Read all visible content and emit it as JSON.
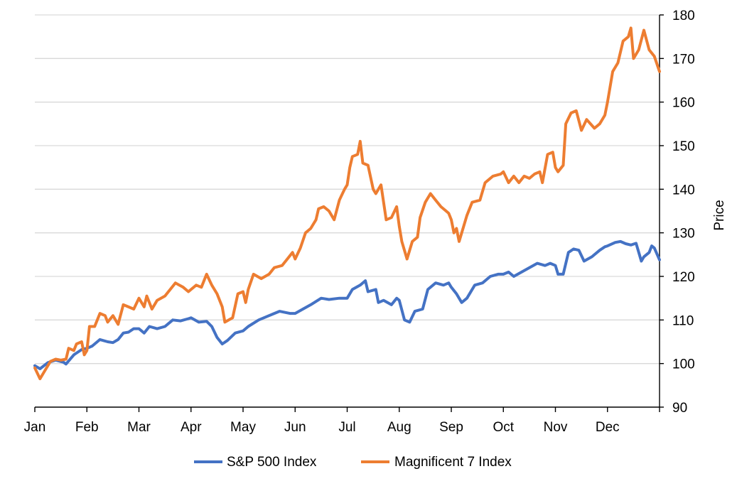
{
  "chart_data": {
    "type": "line",
    "title": "",
    "xlabel": "",
    "ylabel": "Price",
    "y_axis_side": "right",
    "ylim": [
      90,
      180
    ],
    "y_ticks": [
      "90",
      "100",
      "110",
      "120",
      "130",
      "140",
      "150",
      "160",
      "170",
      "180"
    ],
    "months": [
      "Jan",
      "Feb",
      "Mar",
      "Apr",
      "May",
      "Jun",
      "Jul",
      "Aug",
      "Sep",
      "Oct",
      "Nov",
      "Dec"
    ],
    "grid": "horizontal",
    "legend_position": "bottom",
    "series": [
      {
        "name": "S&P 500 Index",
        "color": "#4472C4",
        "points": [
          [
            0,
            99.5
          ],
          [
            0.1,
            98.8
          ],
          [
            0.25,
            100.2
          ],
          [
            0.4,
            100.8
          ],
          [
            0.55,
            100.3
          ],
          [
            0.6,
            99.9
          ],
          [
            0.75,
            102.0
          ],
          [
            0.9,
            103.2
          ],
          [
            1.0,
            103.5
          ],
          [
            1.1,
            104.0
          ],
          [
            1.25,
            105.5
          ],
          [
            1.4,
            105.0
          ],
          [
            1.5,
            104.8
          ],
          [
            1.6,
            105.5
          ],
          [
            1.7,
            107.0
          ],
          [
            1.8,
            107.2
          ],
          [
            1.9,
            108.0
          ],
          [
            2.0,
            108.0
          ],
          [
            2.1,
            107.0
          ],
          [
            2.2,
            108.5
          ],
          [
            2.35,
            108.0
          ],
          [
            2.5,
            108.5
          ],
          [
            2.65,
            110.0
          ],
          [
            2.8,
            109.8
          ],
          [
            2.95,
            110.3
          ],
          [
            3.0,
            110.5
          ],
          [
            3.15,
            109.5
          ],
          [
            3.3,
            109.7
          ],
          [
            3.4,
            108.5
          ],
          [
            3.5,
            106.0
          ],
          [
            3.6,
            104.5
          ],
          [
            3.7,
            105.3
          ],
          [
            3.85,
            107.0
          ],
          [
            4.0,
            107.5
          ],
          [
            4.1,
            108.5
          ],
          [
            4.3,
            110.0
          ],
          [
            4.5,
            111.0
          ],
          [
            4.7,
            112.0
          ],
          [
            4.9,
            111.5
          ],
          [
            5.0,
            111.5
          ],
          [
            5.15,
            112.5
          ],
          [
            5.3,
            113.5
          ],
          [
            5.5,
            115.0
          ],
          [
            5.65,
            114.7
          ],
          [
            5.85,
            115.0
          ],
          [
            6.0,
            115.0
          ],
          [
            6.1,
            117.0
          ],
          [
            6.25,
            118.0
          ],
          [
            6.3,
            118.5
          ],
          [
            6.35,
            119.0
          ],
          [
            6.4,
            116.5
          ],
          [
            6.55,
            117.0
          ],
          [
            6.6,
            114.0
          ],
          [
            6.7,
            114.5
          ],
          [
            6.85,
            113.5
          ],
          [
            6.95,
            115.0
          ],
          [
            7.0,
            114.5
          ],
          [
            7.1,
            110.0
          ],
          [
            7.2,
            109.5
          ],
          [
            7.3,
            112.0
          ],
          [
            7.45,
            112.5
          ],
          [
            7.55,
            117.0
          ],
          [
            7.7,
            118.5
          ],
          [
            7.85,
            118.0
          ],
          [
            7.95,
            118.5
          ],
          [
            8.0,
            117.5
          ],
          [
            8.1,
            116.0
          ],
          [
            8.2,
            114.0
          ],
          [
            8.3,
            115.0
          ],
          [
            8.45,
            118.0
          ],
          [
            8.6,
            118.5
          ],
          [
            8.75,
            120.0
          ],
          [
            8.9,
            120.5
          ],
          [
            9.0,
            120.5
          ],
          [
            9.1,
            121.0
          ],
          [
            9.2,
            120.0
          ],
          [
            9.35,
            121.0
          ],
          [
            9.5,
            122.0
          ],
          [
            9.65,
            123.0
          ],
          [
            9.8,
            122.5
          ],
          [
            9.9,
            123.0
          ],
          [
            10.0,
            122.5
          ],
          [
            10.05,
            120.5
          ],
          [
            10.15,
            120.5
          ],
          [
            10.25,
            125.5
          ],
          [
            10.35,
            126.3
          ],
          [
            10.45,
            126.0
          ],
          [
            10.55,
            123.5
          ],
          [
            10.7,
            124.5
          ],
          [
            10.85,
            126.0
          ],
          [
            10.95,
            126.8
          ],
          [
            11.0,
            127.0
          ],
          [
            11.15,
            127.8
          ],
          [
            11.25,
            128.0
          ],
          [
            11.35,
            127.5
          ],
          [
            11.45,
            127.2
          ],
          [
            11.55,
            127.6
          ],
          [
            11.65,
            123.5
          ],
          [
            11.7,
            124.5
          ],
          [
            11.8,
            125.5
          ],
          [
            11.85,
            127.0
          ],
          [
            11.9,
            126.5
          ],
          [
            12.0,
            123.8
          ]
        ]
      },
      {
        "name": "Magnificent 7 Index",
        "color": "#ED7D31",
        "points": [
          [
            0,
            99.0
          ],
          [
            0.1,
            96.5
          ],
          [
            0.2,
            98.5
          ],
          [
            0.3,
            100.5
          ],
          [
            0.4,
            101.0
          ],
          [
            0.5,
            100.8
          ],
          [
            0.6,
            101.0
          ],
          [
            0.65,
            103.5
          ],
          [
            0.75,
            103.0
          ],
          [
            0.8,
            104.5
          ],
          [
            0.9,
            105.0
          ],
          [
            0.95,
            102.0
          ],
          [
            1.0,
            103.0
          ],
          [
            1.05,
            108.5
          ],
          [
            1.15,
            108.5
          ],
          [
            1.25,
            111.5
          ],
          [
            1.35,
            111.0
          ],
          [
            1.4,
            109.5
          ],
          [
            1.5,
            111.0
          ],
          [
            1.6,
            109.0
          ],
          [
            1.7,
            113.5
          ],
          [
            1.8,
            113.0
          ],
          [
            1.9,
            112.5
          ],
          [
            2.0,
            115.0
          ],
          [
            2.1,
            113.0
          ],
          [
            2.15,
            115.5
          ],
          [
            2.25,
            112.5
          ],
          [
            2.35,
            114.5
          ],
          [
            2.5,
            115.5
          ],
          [
            2.6,
            117.0
          ],
          [
            2.7,
            118.5
          ],
          [
            2.85,
            117.5
          ],
          [
            2.95,
            116.5
          ],
          [
            3.0,
            117.0
          ],
          [
            3.1,
            118.0
          ],
          [
            3.2,
            117.5
          ],
          [
            3.3,
            120.5
          ],
          [
            3.4,
            118.0
          ],
          [
            3.5,
            116.0
          ],
          [
            3.6,
            113.0
          ],
          [
            3.65,
            109.5
          ],
          [
            3.8,
            110.5
          ],
          [
            3.9,
            116.0
          ],
          [
            4.0,
            116.5
          ],
          [
            4.05,
            114.0
          ],
          [
            4.1,
            117.0
          ],
          [
            4.2,
            120.5
          ],
          [
            4.35,
            119.5
          ],
          [
            4.5,
            120.5
          ],
          [
            4.6,
            122.0
          ],
          [
            4.75,
            122.5
          ],
          [
            4.85,
            124.0
          ],
          [
            4.95,
            125.5
          ],
          [
            5.0,
            124.0
          ],
          [
            5.1,
            126.5
          ],
          [
            5.2,
            130.0
          ],
          [
            5.3,
            131.0
          ],
          [
            5.4,
            133.0
          ],
          [
            5.45,
            135.5
          ],
          [
            5.55,
            136.0
          ],
          [
            5.65,
            135.0
          ],
          [
            5.75,
            133.0
          ],
          [
            5.85,
            137.5
          ],
          [
            5.95,
            140.0
          ],
          [
            6.0,
            141.0
          ],
          [
            6.05,
            145.0
          ],
          [
            6.1,
            147.5
          ],
          [
            6.2,
            148.0
          ],
          [
            6.25,
            151.0
          ],
          [
            6.3,
            146.0
          ],
          [
            6.4,
            145.5
          ],
          [
            6.5,
            140.0
          ],
          [
            6.55,
            139.0
          ],
          [
            6.65,
            141.0
          ],
          [
            6.75,
            133.0
          ],
          [
            6.85,
            133.5
          ],
          [
            6.95,
            136.0
          ],
          [
            7.0,
            131.5
          ],
          [
            7.05,
            128.0
          ],
          [
            7.15,
            124.0
          ],
          [
            7.25,
            128.0
          ],
          [
            7.35,
            129.0
          ],
          [
            7.4,
            133.5
          ],
          [
            7.5,
            137.0
          ],
          [
            7.6,
            139.0
          ],
          [
            7.7,
            137.5
          ],
          [
            7.8,
            136.0
          ],
          [
            7.9,
            135.0
          ],
          [
            7.95,
            134.5
          ],
          [
            8.0,
            133.0
          ],
          [
            8.05,
            130.0
          ],
          [
            8.1,
            131.0
          ],
          [
            8.15,
            128.0
          ],
          [
            8.3,
            134.0
          ],
          [
            8.4,
            137.0
          ],
          [
            8.55,
            137.5
          ],
          [
            8.65,
            141.5
          ],
          [
            8.8,
            143.0
          ],
          [
            8.95,
            143.5
          ],
          [
            9.0,
            144.0
          ],
          [
            9.1,
            141.5
          ],
          [
            9.2,
            143.0
          ],
          [
            9.3,
            141.5
          ],
          [
            9.4,
            143.0
          ],
          [
            9.5,
            142.5
          ],
          [
            9.6,
            143.5
          ],
          [
            9.7,
            144.0
          ],
          [
            9.75,
            141.5
          ],
          [
            9.85,
            148.0
          ],
          [
            9.95,
            148.5
          ],
          [
            10.0,
            145.0
          ],
          [
            10.05,
            144.0
          ],
          [
            10.15,
            145.5
          ],
          [
            10.2,
            155.0
          ],
          [
            10.3,
            157.5
          ],
          [
            10.4,
            158.0
          ],
          [
            10.5,
            153.5
          ],
          [
            10.6,
            156.0
          ],
          [
            10.75,
            154.0
          ],
          [
            10.85,
            155.0
          ],
          [
            10.95,
            157.0
          ],
          [
            11.0,
            160.0
          ],
          [
            11.1,
            167.0
          ],
          [
            11.2,
            169.0
          ],
          [
            11.3,
            174.0
          ],
          [
            11.4,
            175.0
          ],
          [
            11.45,
            177.0
          ],
          [
            11.5,
            170.0
          ],
          [
            11.6,
            172.0
          ],
          [
            11.7,
            176.5
          ],
          [
            11.8,
            172.0
          ],
          [
            11.9,
            170.5
          ],
          [
            12.0,
            167.0
          ]
        ]
      }
    ]
  }
}
